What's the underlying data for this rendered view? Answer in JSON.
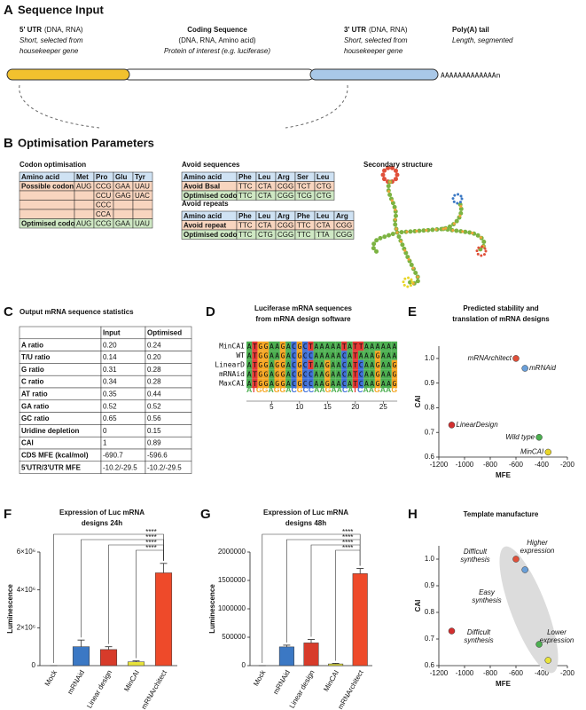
{
  "panel_a": {
    "label": "A",
    "title": "Sequence Input",
    "elements": [
      {
        "name": "5' UTR",
        "note": "(DNA, RNA)",
        "description": [
          "Short, selected from",
          "housekeeper gene"
        ]
      },
      {
        "name": "Coding Sequence",
        "note": "(DNA, RNA, Amino acid)",
        "description": [
          "Protein of interest (e.g. luciferase)"
        ]
      },
      {
        "name": "3' UTR",
        "note": "(DNA, RNA)",
        "description": [
          "Short, selected from",
          "housekeeper gene"
        ]
      },
      {
        "name": "Poly(A) tail",
        "description": [
          "Length, segmented"
        ]
      }
    ],
    "poly_a": "AAAAAAAAAAAAAn"
  },
  "panel_b": {
    "label": "B",
    "title": "Optimisation Parameters",
    "codon_optimisation": {
      "title": "Codon optimisation",
      "header": [
        "Amino acid",
        "Met",
        "Pro",
        "Glu",
        "Tyr"
      ],
      "rows": [
        [
          "Possible codon",
          "AUG",
          "CCG",
          "GAA",
          "UAU"
        ],
        [
          null,
          null,
          "CCU",
          "GAG",
          "UAC"
        ],
        [
          null,
          null,
          "CCC",
          null,
          null
        ],
        [
          null,
          null,
          "CCA",
          null,
          null
        ],
        [
          "Optimised codon",
          "AUG",
          "CCG",
          "GAA",
          "UAU"
        ]
      ],
      "row_colors": [
        "#cfe2f3",
        "#f8d5bf",
        "#f8d5bf",
        "#f8d5bf",
        "#f8d5bf",
        "#cfe8c4"
      ]
    },
    "avoid_sequences": {
      "title": "Avoid sequences",
      "header": [
        "Amino acid",
        "Phe",
        "Leu",
        "Arg",
        "Ser",
        "Leu"
      ],
      "rows": [
        [
          "Avoid BsaI",
          "TTC",
          "CTA",
          "CGG",
          "TCT",
          "CTG"
        ],
        [
          "Optimised codon",
          "TTC",
          "CTA",
          "CGG",
          "TCG",
          "CTG"
        ]
      ],
      "row_colors": [
        "#cfe2f3",
        "#f8d5bf",
        "#cfe8c4"
      ],
      "highlight": [
        [
          0,
          3
        ],
        [
          0,
          4
        ]
      ]
    },
    "avoid_repeats": {
      "title": "Avoid repeats",
      "header": [
        "Amino acid",
        "Phe",
        "Leu",
        "Arg",
        "Phe",
        "Leu",
        "Arg"
      ],
      "rows": [
        [
          "Avoid repeat",
          "TTC",
          "CTA",
          "CGG",
          "TTC",
          "CTA",
          "CGG"
        ],
        [
          "Optimised codon",
          "TTC",
          "CTG",
          "CGG",
          "TTC",
          "TTA",
          "CGG"
        ]
      ],
      "row_colors": [
        "#cfe2f3",
        "#f8d5bf",
        "#cfe8c4"
      ],
      "highlight": [
        [
          0,
          1
        ],
        [
          0,
          2
        ],
        [
          0,
          3
        ],
        [
          0,
          4
        ],
        [
          0,
          5
        ],
        [
          0,
          6
        ],
        [
          1,
          5
        ]
      ]
    },
    "secondary_structure": {
      "title": "Secondary structure"
    }
  },
  "panel_c": {
    "label": "C",
    "title": "Output mRNA sequence statistics",
    "table": {
      "header": [
        null,
        "Input",
        "Optimised"
      ],
      "rows": [
        [
          "A ratio",
          "0.20",
          "0.24"
        ],
        [
          "T/U ratio",
          "0.14",
          "0.20"
        ],
        [
          "G ratio",
          "0.31",
          "0.28"
        ],
        [
          "C ratio",
          "0.34",
          "0.28"
        ],
        [
          "AT ratio",
          "0.35",
          "0.44"
        ],
        [
          "GA ratio",
          "0.52",
          "0.52"
        ],
        [
          "GC ratio",
          "0.65",
          "0.56"
        ],
        [
          "Uridine depletion",
          "0",
          "0.15"
        ],
        [
          "CAI",
          "1",
          "0.89"
        ],
        [
          "CDS MFE (kcal/mol)",
          "-690.7",
          "-596.6"
        ],
        [
          "5'UTR/3'UTR MFE",
          "-10.2/-29.5",
          "-10.2/-29.5"
        ]
      ]
    }
  },
  "panel_d": {
    "label": "D",
    "title": [
      "Luciferase mRNA sequences",
      "from mRNA design software"
    ],
    "names": [
      "MinCAI",
      "WT",
      "LinearD",
      "mRNAid",
      "MaxCAI"
    ],
    "sequences": [
      "ATGGAAGACGCTAAAAATATTAAAAAA",
      "ATGGAAGACGCCAAAAACATAAAGAAA",
      "ATGGAGGACGCTAAGAACATCAAGAAG",
      "ATGGAGGACGCCAAGAACATCAAGAAG",
      "ATGGAGGACGCCAAGAACATCAAGAAG"
    ],
    "logo": "ATGGAGGACGCCAAGAACATCAAGAAG",
    "logo_ticks": [
      5,
      10,
      15,
      20,
      25
    ]
  },
  "chart_data": [
    {
      "type": "scatter",
      "label": "E",
      "title": [
        "Predicted stability and",
        "translation of mRNA designs"
      ],
      "x_label": "MFE",
      "y_label": "CAI",
      "xlim": [
        -1200,
        -200
      ],
      "xticks": [
        -1200,
        -1000,
        -800,
        -600,
        -400,
        -200
      ],
      "ylim": [
        0.6,
        1.05
      ],
      "yticks": [
        0.6,
        0.7,
        0.8,
        0.9,
        {
          "value": 1,
          "label": "1.0"
        }
      ],
      "series": [
        {
          "name": "mRNArchitect",
          "color": "#e0503a",
          "x": [
            -600
          ],
          "values": [
            1.0
          ]
        },
        {
          "name": "mRNAid",
          "color": "#6a9fd8",
          "x": [
            -530
          ],
          "values": [
            0.96
          ]
        },
        {
          "name": "LinearDesign",
          "color": "#d32f2f",
          "x": [
            -1100
          ],
          "values": [
            0.73
          ]
        },
        {
          "name": "Wild type",
          "color": "#4caf50",
          "x": [
            -420
          ],
          "values": [
            0.68
          ]
        },
        {
          "name": "MinCAI",
          "color": "#e8d628",
          "x": [
            -350
          ],
          "values": [
            0.62
          ]
        }
      ]
    },
    {
      "type": "bar",
      "label": "F",
      "title": [
        "Expression of Luc mRNA",
        "designs 24h"
      ],
      "y_label": "Luminescence",
      "categories": [
        "Mock",
        "mRNAid",
        "Linear design",
        "MinCAI",
        "mRNArchitect"
      ],
      "values": [
        0,
        1000000,
        850000,
        200000,
        4900000
      ],
      "errors": [
        0,
        350000,
        150000,
        50000,
        500000
      ],
      "colors": [
        "#ffffff",
        "#3b78c4",
        "#d73b2a",
        "#e8e33c",
        "#ee4a2a"
      ],
      "ylim": [
        0,
        6000000
      ],
      "yticks": [
        0,
        {
          "value": 2000000,
          "label": "2×10⁶"
        },
        {
          "value": 4000000,
          "label": "4×10⁶"
        },
        {
          "value": 6000000,
          "label": "6×10⁶"
        }
      ],
      "significance": [
        "****",
        "****",
        "****",
        "****"
      ]
    },
    {
      "type": "bar",
      "label": "G",
      "title": [
        "Expression of Luc mRNA",
        "designs 48h"
      ],
      "y_label": "Luminescence",
      "categories": [
        "Mock",
        "mRNAid",
        "Linear design",
        "MinCAI",
        "mRNArchitect"
      ],
      "values": [
        0,
        330000,
        400000,
        30000,
        1620000
      ],
      "errors": [
        0,
        30000,
        60000,
        10000,
        90000
      ],
      "colors": [
        "#ffffff",
        "#3b78c4",
        "#d73b2a",
        "#e8e33c",
        "#ee4a2a"
      ],
      "ylim": [
        0,
        2000000
      ],
      "yticks": [
        0,
        500000,
        1000000,
        1500000,
        2000000
      ],
      "significance": [
        "****",
        "****",
        "****",
        "****"
      ]
    },
    {
      "type": "scatter",
      "label": "H",
      "title": [
        "Template manufacture"
      ],
      "x_label": "MFE",
      "y_label": "CAI",
      "xlim": [
        -1200,
        -200
      ],
      "xticks": [
        -1200,
        -1000,
        -800,
        -600,
        -400,
        -200
      ],
      "ylim": [
        0.6,
        1.05
      ],
      "yticks": [
        0.6,
        0.7,
        0.8,
        0.9,
        {
          "value": 1,
          "label": "1.0"
        }
      ],
      "x": [
        -600,
        -530,
        -1100,
        -420,
        -350
      ],
      "values": [
        1.0,
        0.96,
        0.73,
        0.68,
        0.62
      ],
      "colors": [
        "#e0503a",
        "#6a9fd8",
        "#d32f2f",
        "#4caf50",
        "#e8e33c"
      ],
      "annotations": [
        [
          "Difficult",
          "synthesis"
        ],
        [
          "Higher",
          "expression"
        ],
        [
          "Easy",
          "synthesis"
        ],
        [
          "Difficult",
          "synthesis"
        ],
        [
          "Lower",
          "expression"
        ]
      ]
    }
  ]
}
